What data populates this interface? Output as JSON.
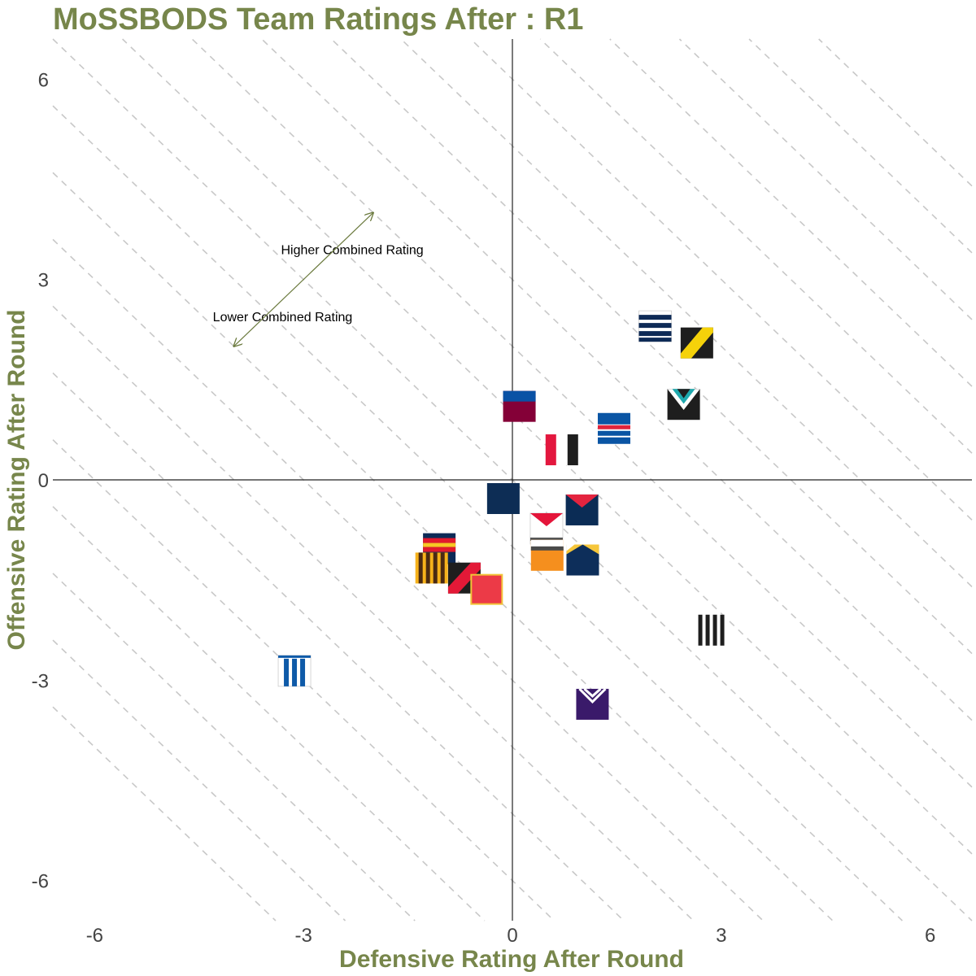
{
  "chart_data": {
    "type": "scatter",
    "title": "MoSSBODS Team Ratings After : R1",
    "xlabel": "Defensive Rating After Round",
    "ylabel": "Offensive Rating After Round",
    "xlim": [
      -6.6,
      6.6
    ],
    "ylim": [
      -6.6,
      6.6
    ],
    "xticks": [
      -6,
      -3,
      0,
      3,
      6
    ],
    "yticks": [
      -6,
      -3,
      0,
      3,
      6
    ],
    "grid": false,
    "reference_lines": {
      "style": "dashed",
      "slope": -1,
      "combined_ratings": [
        -10,
        -9,
        -8,
        -7,
        -6,
        -5,
        -4,
        -3,
        -2,
        -1,
        0,
        1,
        2,
        3,
        4,
        5,
        6,
        7,
        8,
        9,
        10,
        11
      ]
    },
    "annotations": [
      {
        "text": "Higher Combined Rating",
        "x": -2.3,
        "y": 3.45
      },
      {
        "text": "Lower Combined Rating",
        "x": -3.3,
        "y": 2.45
      }
    ],
    "arrow": {
      "from": [
        -4.0,
        2.0
      ],
      "to": [
        -2.0,
        4.0
      ],
      "color": "#6b7a3e"
    },
    "points": [
      {
        "x": 2.05,
        "y": 2.3,
        "icon": "navy-white-hoops-flag"
      },
      {
        "x": 2.65,
        "y": 2.05,
        "icon": "black-yellow-sash-flag"
      },
      {
        "x": 2.46,
        "y": 1.13,
        "icon": "black-teal-chevron-flag"
      },
      {
        "x": 0.1,
        "y": 1.1,
        "icon": "blue-maroon-flag"
      },
      {
        "x": 1.46,
        "y": 0.77,
        "icon": "blue-red-white-bands-flag"
      },
      {
        "x": 0.71,
        "y": 0.45,
        "icon": "red-white-black-vertical-flag"
      },
      {
        "x": -0.13,
        "y": -0.28,
        "icon": "navy-square-flag"
      },
      {
        "x": 1.0,
        "y": -0.45,
        "icon": "navy-red-v-flag"
      },
      {
        "x": 0.49,
        "y": -0.73,
        "icon": "white-red-chevron-flag"
      },
      {
        "x": 0.5,
        "y": -1.13,
        "icon": "orange-charcoal-flag"
      },
      {
        "x": 1.01,
        "y": -1.2,
        "icon": "navy-gold-peak-flag"
      },
      {
        "x": -1.05,
        "y": -1.03,
        "icon": "red-yellow-navy-hoops-flag"
      },
      {
        "x": -1.16,
        "y": -1.32,
        "icon": "brown-gold-stripes-flag"
      },
      {
        "x": -0.69,
        "y": -1.47,
        "icon": "black-red-sash-flag"
      },
      {
        "x": -0.37,
        "y": -1.64,
        "icon": "red-yellow-trim-flag"
      },
      {
        "x": 2.88,
        "y": -2.25,
        "icon": "black-white-stripes-flag"
      },
      {
        "x": -3.13,
        "y": -2.86,
        "icon": "blue-white-stripes-flag"
      },
      {
        "x": 1.15,
        "y": -3.36,
        "icon": "purple-chevron-flag"
      }
    ]
  }
}
